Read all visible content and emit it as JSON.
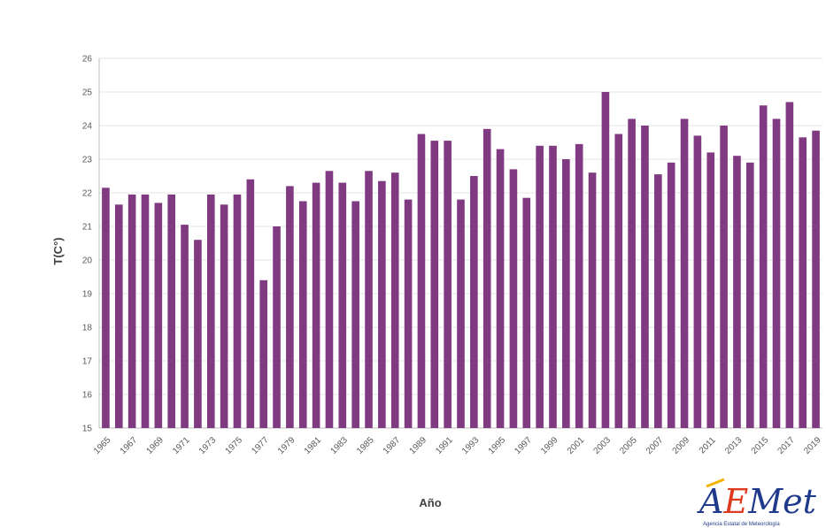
{
  "chart_data": {
    "type": "bar",
    "xlabel": "Año",
    "ylabel": "T(C°)",
    "ylim": [
      15,
      26
    ],
    "yticks": [
      15,
      16,
      17,
      18,
      19,
      20,
      21,
      22,
      23,
      24,
      25,
      26
    ],
    "grid": true,
    "bar_color": "#7f3a82",
    "categories": [
      "1965",
      "1966",
      "1967",
      "1968",
      "1969",
      "1970",
      "1971",
      "1972",
      "1973",
      "1974",
      "1975",
      "1976",
      "1977",
      "1978",
      "1979",
      "1980",
      "1981",
      "1982",
      "1983",
      "1984",
      "1985",
      "1986",
      "1987",
      "1988",
      "1989",
      "1990",
      "1991",
      "1992",
      "1993",
      "1994",
      "1995",
      "1996",
      "1997",
      "1998",
      "1999",
      "2000",
      "2001",
      "2002",
      "2003",
      "2004",
      "2005",
      "2006",
      "2007",
      "2008",
      "2009",
      "2010",
      "2011",
      "2012",
      "2013",
      "2014",
      "2015",
      "2016",
      "2017",
      "2018",
      "2019"
    ],
    "x_tick_labels": [
      "1965",
      "1967",
      "1969",
      "1971",
      "1973",
      "1975",
      "1977",
      "1979",
      "1981",
      "1983",
      "1985",
      "1987",
      "1989",
      "1991",
      "1993",
      "1995",
      "1997",
      "1999",
      "2001",
      "2003",
      "2005",
      "2007",
      "2009",
      "2011",
      "2013",
      "2015",
      "2017",
      "2019"
    ],
    "values": [
      22.15,
      21.65,
      21.95,
      21.95,
      21.7,
      21.95,
      21.05,
      20.6,
      21.95,
      21.65,
      21.95,
      22.4,
      19.4,
      21.0,
      22.2,
      21.75,
      22.3,
      22.65,
      22.3,
      21.75,
      22.65,
      22.35,
      22.6,
      21.8,
      23.75,
      23.55,
      23.55,
      21.8,
      22.5,
      23.9,
      23.3,
      22.7,
      21.85,
      23.4,
      23.4,
      23.0,
      23.45,
      22.6,
      25.0,
      23.75,
      24.2,
      24.0,
      22.55,
      22.9,
      24.2,
      23.7,
      23.2,
      24.0,
      23.1,
      22.9,
      24.6,
      24.2,
      24.7,
      23.65,
      23.85
    ]
  },
  "logo": {
    "wordmark": "AEMet",
    "subtitle": "Agencia Estatal de Meteorología",
    "colors": {
      "primary": "#1f3a8a",
      "accent": "#e03a1e",
      "accent2": "#f2b400"
    }
  }
}
